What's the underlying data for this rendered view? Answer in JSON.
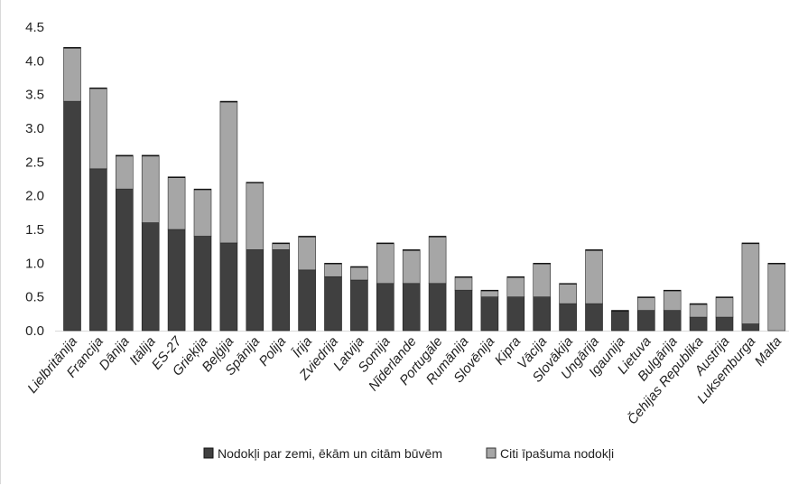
{
  "chart_data": {
    "type": "bar",
    "stacked": true,
    "categories": [
      "Lielbritānija",
      "Francija",
      "Dānija",
      "Itālija",
      "ES-27",
      "Grieķija",
      "Beļģija",
      "Spānija",
      "Polija",
      "Īrija",
      "Zviedrija",
      "Latvija",
      "Somija",
      "Nīderlande",
      "Portugāle",
      "Rumānija",
      "Slovēnija",
      "Kipra",
      "Vācija",
      "Slovākija",
      "Ungārija",
      "Igaunija",
      "Lietuva",
      "Bulgārija",
      "Čehijas Republika",
      "Austrija",
      "Luksemburga",
      "Malta"
    ],
    "series": [
      {
        "name": "Nodokļi par zemi, ēkām un citām būvēm",
        "color": "#404040",
        "values": [
          3.4,
          2.4,
          2.1,
          1.6,
          1.5,
          1.4,
          1.3,
          1.2,
          1.2,
          0.9,
          0.8,
          0.75,
          0.7,
          0.7,
          0.7,
          0.6,
          0.5,
          0.5,
          0.5,
          0.4,
          0.4,
          0.3,
          0.3,
          0.3,
          0.2,
          0.2,
          0.1,
          0.0
        ]
      },
      {
        "name": "Citi īpašuma nodokļi",
        "color": "#a6a6a6",
        "values": [
          0.8,
          1.2,
          0.5,
          1.0,
          0.78,
          0.7,
          2.1,
          1.0,
          0.1,
          0.5,
          0.2,
          0.2,
          0.6,
          0.5,
          0.7,
          0.2,
          0.1,
          0.3,
          0.5,
          0.3,
          0.8,
          0.0,
          0.2,
          0.3,
          0.2,
          0.3,
          1.2,
          1.0
        ]
      }
    ],
    "ylim": [
      0,
      4.5
    ],
    "yticks": [
      "0.0",
      "0.5",
      "1.0",
      "1.5",
      "2.0",
      "2.5",
      "3.0",
      "3.5",
      "4.0",
      "4.5"
    ],
    "grid": false,
    "legend_position": "bottom",
    "title": "",
    "xlabel": "",
    "ylabel": ""
  }
}
